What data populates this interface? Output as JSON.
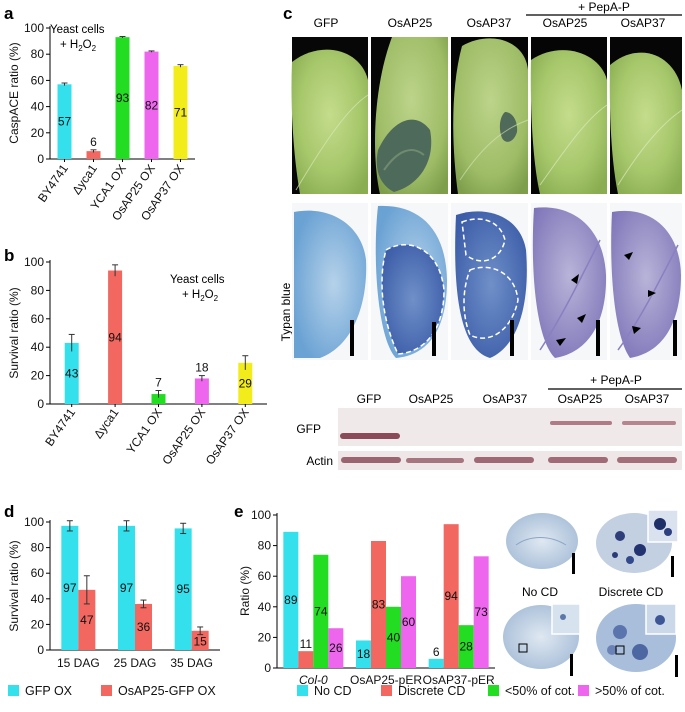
{
  "panels": {
    "a": "a",
    "b": "b",
    "c": "c",
    "d": "d",
    "e": "e"
  },
  "panel_a": {
    "note_line1": "Yeast cells",
    "note_line2": "+ H",
    "note_sub": "2",
    "note_mid": "O",
    "note_sub2": "2"
  },
  "panel_b": {
    "note_line1": "Yeast cells",
    "note_line2": "+ H",
    "note_sub": "2",
    "note_mid": "O",
    "note_sub2": "2"
  },
  "panel_c": {
    "columns": [
      "GFP",
      "OsAP25",
      "OsAP37",
      "OsAP25",
      "OsAP37"
    ],
    "pepa_label": "+ PepA-P",
    "row_label": "Typan blue",
    "blot_columns": [
      "GFP",
      "OsAP25",
      "OsAP37",
      "OsAP25",
      "OsAP37"
    ],
    "blot_pepa_label": "+ PepA-P",
    "blot_rows": [
      "GFP",
      "Actin"
    ]
  },
  "panel_e_images": {
    "labels": [
      "No CD",
      "Discrete CD"
    ]
  },
  "chart_data": [
    {
      "id": "a",
      "type": "bar",
      "categories": [
        "BY4741",
        "Δyca1",
        "YCA1 OX",
        "OsAP25 OX",
        "OsAP37 OX"
      ],
      "values": [
        57,
        6,
        93,
        82,
        71
      ],
      "errors": [
        1,
        1,
        0.5,
        0.5,
        1
      ],
      "colors": [
        "#33e0ec",
        "#f2675f",
        "#22dd22",
        "#ee66ee",
        "#f2ec1a"
      ],
      "ylabel": "CaspACE ratio (%)",
      "ylim": [
        0,
        100
      ],
      "yticks": [
        0,
        20,
        40,
        60,
        80,
        100
      ]
    },
    {
      "id": "b",
      "type": "bar",
      "categories": [
        "BY4741",
        "Δyca1",
        "YCA1 OX",
        "OsAP25 OX",
        "OsAP37 OX"
      ],
      "values": [
        43,
        94,
        7,
        18,
        29
      ],
      "errors": [
        6,
        4,
        2.5,
        2,
        5
      ],
      "colors": [
        "#33e0ec",
        "#f2675f",
        "#22dd22",
        "#ee66ee",
        "#f2ec1a"
      ],
      "ylabel": "Survival ratio (%)",
      "ylim": [
        0,
        100
      ],
      "yticks": [
        0,
        20,
        40,
        60,
        80,
        100
      ]
    },
    {
      "id": "d",
      "type": "bar",
      "categories": [
        "15 DAG",
        "25 DAG",
        "35 DAG"
      ],
      "series": [
        {
          "name": "GFP OX",
          "color": "#33e0ec",
          "values": [
            97,
            97,
            95
          ],
          "errors": [
            4,
            4,
            4
          ]
        },
        {
          "name": "OsAP25-GFP OX",
          "color": "#f2675f",
          "values": [
            47,
            36,
            15
          ],
          "errors": [
            11,
            3,
            3
          ]
        }
      ],
      "ylabel": "Survival ratio (%)",
      "ylim": [
        0,
        100
      ],
      "yticks": [
        0,
        20,
        40,
        60,
        80,
        100
      ]
    },
    {
      "id": "e",
      "type": "bar",
      "categories": [
        "Col-0",
        "OsAP25-pER",
        "OsAP37-pER"
      ],
      "series": [
        {
          "name": "No CD",
          "color": "#33e0ec",
          "values": [
            89,
            18,
            6
          ]
        },
        {
          "name": "Discrete CD",
          "color": "#f2675f",
          "values": [
            11,
            83,
            94
          ]
        },
        {
          "name": "<50% of cot.",
          "color": "#22dd22",
          "values": [
            74,
            40,
            28
          ]
        },
        {
          "name": ">50% of cot.",
          "color": "#ee66ee",
          "values": [
            26,
            60,
            73
          ]
        }
      ],
      "ylabel": "Ratio (%)",
      "ylim": [
        0,
        100
      ],
      "yticks": [
        0,
        20,
        40,
        60,
        80,
        100
      ]
    }
  ]
}
